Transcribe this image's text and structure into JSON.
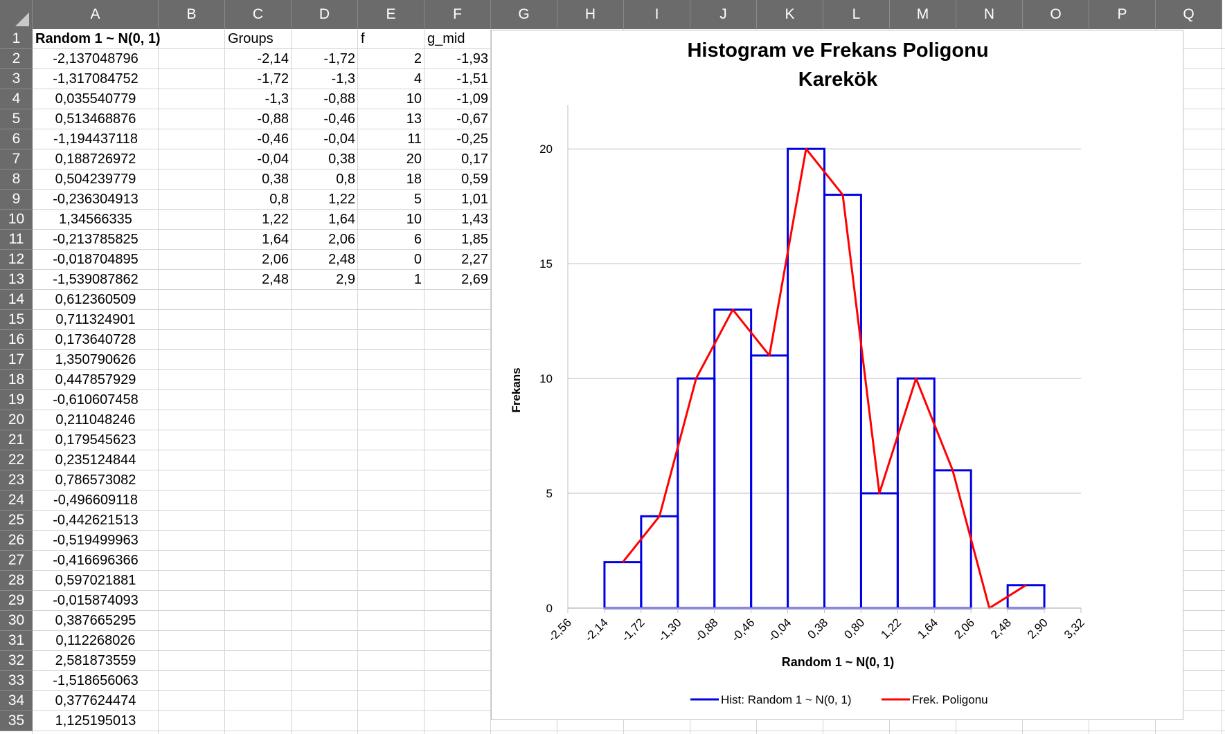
{
  "columns": [
    "A",
    "B",
    "C",
    "D",
    "E",
    "F",
    "G",
    "H",
    "I",
    "J",
    "K",
    "L",
    "M",
    "N",
    "O",
    "P",
    "Q"
  ],
  "rows": [
    "1",
    "2",
    "3",
    "4",
    "5",
    "6",
    "7",
    "8",
    "9",
    "10",
    "11",
    "12",
    "13",
    "14",
    "15",
    "16",
    "17",
    "18",
    "19",
    "20",
    "21",
    "22",
    "23",
    "24",
    "25",
    "26",
    "27",
    "28",
    "29",
    "30",
    "31",
    "32",
    "33",
    "34",
    "35"
  ],
  "headers": {
    "A": "Random 1 ~ N(0, 1)",
    "C": "Groups",
    "E": "f",
    "F": "g_mid"
  },
  "colA": [
    "-2,137048796",
    "-1,317084752",
    "0,035540779",
    "0,513468876",
    "-1,194437118",
    "0,188726972",
    "0,504239779",
    "-0,236304913",
    "1,34566335",
    "-0,213785825",
    "-0,018704895",
    "-1,539087862",
    "0,612360509",
    "0,711324901",
    "0,173640728",
    "1,350790626",
    "0,447857929",
    "-0,610607458",
    "0,211048246",
    "0,179545623",
    "0,235124844",
    "0,786573082",
    "-0,496609118",
    "-0,442621513",
    "-0,519499963",
    "-0,416696366",
    "0,597021881",
    "-0,015874093",
    "0,387665295",
    "0,112268026",
    "2,581873559",
    "-1,518656063",
    "0,377624474",
    "1,125195013"
  ],
  "groups": [
    {
      "C": "-2,14",
      "D": "-1,72",
      "E": "2",
      "F": "-1,93"
    },
    {
      "C": "-1,72",
      "D": "-1,3",
      "E": "4",
      "F": "-1,51"
    },
    {
      "C": "-1,3",
      "D": "-0,88",
      "E": "10",
      "F": "-1,09"
    },
    {
      "C": "-0,88",
      "D": "-0,46",
      "E": "13",
      "F": "-0,67"
    },
    {
      "C": "-0,46",
      "D": "-0,04",
      "E": "11",
      "F": "-0,25"
    },
    {
      "C": "-0,04",
      "D": "0,38",
      "E": "20",
      "F": "0,17"
    },
    {
      "C": "0,38",
      "D": "0,8",
      "E": "18",
      "F": "0,59"
    },
    {
      "C": "0,8",
      "D": "1,22",
      "E": "5",
      "F": "1,01"
    },
    {
      "C": "1,22",
      "D": "1,64",
      "E": "10",
      "F": "1,43"
    },
    {
      "C": "1,64",
      "D": "2,06",
      "E": "6",
      "F": "1,85"
    },
    {
      "C": "2,06",
      "D": "2,48",
      "E": "0",
      "F": "2,27"
    },
    {
      "C": "2,48",
      "D": "2,9",
      "E": "1",
      "F": "2,69"
    }
  ],
  "chart": {
    "title_line1": "Histogram ve Frekans Poligonu",
    "title_line2": "Karekök",
    "xlabel": "Random 1 ~ N(0, 1)",
    "ylabel": "Frekans",
    "x_tick_labels": [
      "-2,56",
      "-2,14",
      "-1,72",
      "-1,30",
      "-0,88",
      "-0,46",
      "-0,04",
      "0,38",
      "0,80",
      "1,22",
      "1,64",
      "2,06",
      "2,48",
      "2,90",
      "3,32"
    ],
    "y_tick_labels": [
      "0",
      "5",
      "10",
      "15",
      "20"
    ],
    "legend": [
      "Hist: Random 1 ~ N(0, 1)",
      "Frek. Poligonu"
    ],
    "colors": {
      "histogram": "#0000e6",
      "polygon": "#ff0000",
      "grid": "#bfbfbf"
    }
  },
  "chart_data": {
    "type": "bar",
    "title": "Histogram ve Frekans Poligonu Karekök",
    "xlabel": "Random 1 ~ N(0, 1)",
    "ylabel": "Frekans",
    "xlim": [
      -2.56,
      3.32
    ],
    "ylim": [
      0,
      21
    ],
    "x_ticks": [
      -2.56,
      -2.14,
      -1.72,
      -1.3,
      -0.88,
      -0.46,
      -0.04,
      0.38,
      0.8,
      1.22,
      1.64,
      2.06,
      2.48,
      2.9,
      3.32
    ],
    "y_ticks": [
      0,
      5,
      10,
      15,
      20
    ],
    "grid": "horizontal",
    "legend_position": "bottom",
    "series": [
      {
        "name": "Hist: Random 1 ~ N(0, 1)",
        "kind": "histogram",
        "bins": [
          [
            -2.14,
            -1.72
          ],
          [
            -1.72,
            -1.3
          ],
          [
            -1.3,
            -0.88
          ],
          [
            -0.88,
            -0.46
          ],
          [
            -0.46,
            -0.04
          ],
          [
            -0.04,
            0.38
          ],
          [
            0.38,
            0.8
          ],
          [
            0.8,
            1.22
          ],
          [
            1.22,
            1.64
          ],
          [
            1.64,
            2.06
          ],
          [
            2.06,
            2.48
          ],
          [
            2.48,
            2.9
          ]
        ],
        "values": [
          2,
          4,
          10,
          13,
          11,
          20,
          18,
          5,
          10,
          6,
          0,
          1
        ]
      },
      {
        "name": "Frek. Poligonu",
        "kind": "line",
        "x": [
          -1.93,
          -1.51,
          -1.09,
          -0.67,
          -0.25,
          0.17,
          0.59,
          1.01,
          1.43,
          1.85,
          2.27,
          2.69
        ],
        "values": [
          2,
          4,
          10,
          13,
          11,
          20,
          18,
          5,
          10,
          6,
          0,
          1
        ]
      }
    ]
  }
}
